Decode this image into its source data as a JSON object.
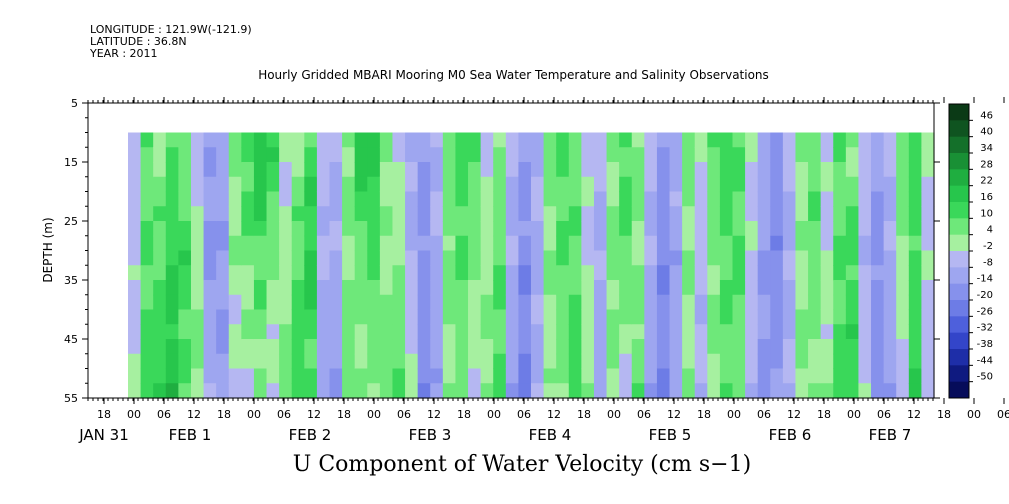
{
  "meta": {
    "longitude": "LONGITUDE : 121.9W(-121.9)",
    "latitude": "LATITUDE : 36.8N",
    "year": "YEAR : 2011"
  },
  "chart_data": {
    "type": "heatmap",
    "title": "Hourly Gridded MBARI Mooring M0 Sea Water Temperature and Salinity Observations",
    "caption": "U Component of Water Velocity (cm s−1)",
    "ylabel": "DEPTH (m)",
    "ylim": [
      5,
      55
    ],
    "y_inverted": true,
    "y_ticks": [
      5,
      15,
      25,
      35,
      45,
      55
    ],
    "data_depth_range": [
      10,
      55
    ],
    "x_hour_ticks": [
      "18",
      "00",
      "06",
      "12",
      "18",
      "00",
      "06",
      "12",
      "18",
      "00",
      "06",
      "12",
      "18",
      "00",
      "06",
      "12",
      "18",
      "00",
      "06",
      "12",
      "18",
      "00",
      "06",
      "12",
      "18",
      "00",
      "06",
      "12",
      "18",
      "00",
      "06",
      "12"
    ],
    "x_day_labels": [
      "JAN 31",
      "FEB  1",
      "FEB  2",
      "FEB  3",
      "FEB  4",
      "FEB  5",
      "FEB  6",
      "FEB  7"
    ],
    "colorbar": {
      "levels": [
        46,
        40,
        34,
        28,
        22,
        16,
        10,
        4,
        -2,
        -8,
        -14,
        -20,
        -26,
        -32,
        -38,
        -44,
        -50
      ],
      "colors_top_to_bottom": [
        "#0b3a16",
        "#0f5420",
        "#14702a",
        "#199035",
        "#1fae40",
        "#27c64c",
        "#3ad85a",
        "#6ee87a",
        "#a6f0a0",
        "#b5b7f2",
        "#9ea6f0",
        "#8691ec",
        "#6d7ce6",
        "#4e60dc",
        "#3345c9",
        "#1e2ea8",
        "#0f1a80",
        "#060c5a"
      ]
    },
    "data_pattern": {
      "description_key": "time-depth stripes alternating positive (green) and negative (blue) u-velocity",
      "column_values_surface_to_bottom": [
        [
          -6,
          -4,
          -2
        ],
        [
          8,
          10,
          14
        ],
        [
          4,
          10,
          18
        ],
        [
          10,
          16,
          20
        ],
        [
          6,
          14,
          8
        ],
        [
          -4,
          2,
          6
        ],
        [
          -12,
          -16,
          -8
        ],
        [
          -10,
          -14,
          -12
        ],
        [
          6,
          2,
          -4
        ],
        [
          14,
          6,
          -2
        ],
        [
          22,
          10,
          4
        ],
        [
          16,
          4,
          -4
        ],
        [
          -4,
          2,
          8
        ],
        [
          4,
          10,
          16
        ],
        [
          12,
          18,
          8
        ],
        [
          -4,
          -8,
          -12
        ],
        [
          -8,
          -10,
          -14
        ],
        [
          6,
          4,
          8
        ],
        [
          18,
          8,
          2
        ],
        [
          20,
          10,
          4
        ],
        [
          6,
          2,
          10
        ],
        [
          -2,
          4,
          14
        ],
        [
          -10,
          -8,
          -2
        ],
        [
          -14,
          -16,
          -18
        ],
        [
          -6,
          -10,
          -12
        ],
        [
          8,
          6,
          2
        ],
        [
          14,
          10,
          4
        ],
        [
          10,
          6,
          -2
        ],
        [
          -2,
          2,
          6
        ],
        [
          4,
          8,
          12
        ],
        [
          -6,
          -10,
          -14
        ],
        [
          -12,
          -18,
          -20
        ],
        [
          -8,
          -10,
          -8
        ],
        [
          6,
          4,
          2
        ],
        [
          12,
          8,
          4
        ],
        [
          6,
          10,
          14
        ],
        [
          -4,
          -2,
          4
        ],
        [
          -8,
          -10,
          -12
        ],
        [
          4,
          6,
          2
        ],
        [
          12,
          8,
          -2
        ],
        [
          6,
          4,
          8
        ],
        [
          -6,
          -10,
          -14
        ],
        [
          -14,
          -18,
          -20
        ],
        [
          -8,
          -12,
          -10
        ],
        [
          6,
          4,
          2
        ],
        [
          -4,
          -6,
          -8
        ],
        [
          10,
          6,
          4
        ],
        [
          16,
          10,
          8
        ],
        [
          8,
          12,
          6
        ],
        [
          -2,
          -4,
          -6
        ],
        [
          -10,
          -14,
          -16
        ],
        [
          -16,
          -18,
          -14
        ],
        [
          -6,
          -10,
          -8
        ],
        [
          4,
          2,
          6
        ],
        [
          10,
          8,
          4
        ],
        [
          -4,
          -2,
          2
        ],
        [
          8,
          10,
          14
        ],
        [
          4,
          12,
          16
        ],
        [
          -4,
          -6,
          -2
        ],
        [
          -12,
          -16,
          -18
        ],
        [
          -6,
          -10,
          -14
        ],
        [
          8,
          2,
          -4
        ],
        [
          14,
          12,
          16
        ],
        [
          -2,
          -4,
          -6
        ]
      ]
    }
  }
}
